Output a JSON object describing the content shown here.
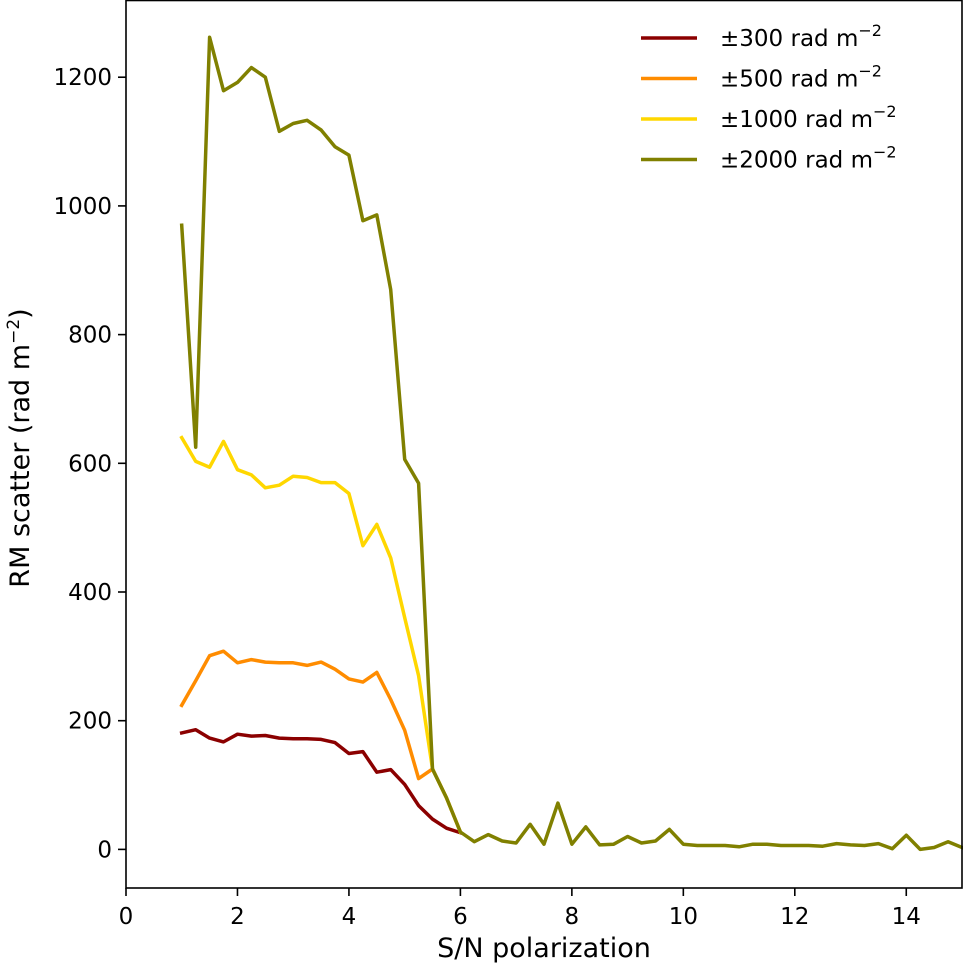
{
  "chart_data": {
    "type": "line",
    "xlabel": "S/N polarization",
    "ylabel": "RM scatter (rad m",
    "ylabel_sup": "−2",
    "ylabel_close": ")",
    "xlim": [
      0,
      15
    ],
    "ylim": [
      -60,
      1320
    ],
    "xticks": [
      0,
      2,
      4,
      6,
      8,
      10,
      12,
      14
    ],
    "yticks": [
      0,
      200,
      400,
      600,
      800,
      1000,
      1200
    ],
    "grid": false,
    "legend_position": "top-right",
    "legend_unit_sup": "−2",
    "series": [
      {
        "name": "±300 rad m",
        "color": "#8b0000",
        "points": [
          [
            1.0,
            181
          ],
          [
            1.25,
            186
          ],
          [
            1.5,
            173
          ],
          [
            1.75,
            167
          ],
          [
            2.0,
            179
          ],
          [
            2.25,
            176
          ],
          [
            2.5,
            177
          ],
          [
            2.75,
            173
          ],
          [
            3.0,
            172
          ],
          [
            3.25,
            172
          ],
          [
            3.5,
            171
          ],
          [
            3.75,
            166
          ],
          [
            4.0,
            149
          ],
          [
            4.25,
            152
          ],
          [
            4.5,
            120
          ],
          [
            4.75,
            124
          ],
          [
            5.0,
            101
          ],
          [
            5.25,
            68
          ],
          [
            5.5,
            47
          ],
          [
            5.75,
            33
          ],
          [
            6.0,
            26
          ]
        ]
      },
      {
        "name": "±500 rad m",
        "color": "#ff8c00",
        "points": [
          [
            1.0,
            224
          ],
          [
            1.25,
            262
          ],
          [
            1.5,
            301
          ],
          [
            1.75,
            308
          ],
          [
            2.0,
            290
          ],
          [
            2.25,
            295
          ],
          [
            2.5,
            291
          ],
          [
            2.75,
            290
          ],
          [
            3.0,
            290
          ],
          [
            3.25,
            286
          ],
          [
            3.5,
            291
          ],
          [
            3.75,
            280
          ],
          [
            4.0,
            265
          ],
          [
            4.25,
            260
          ],
          [
            4.5,
            275
          ],
          [
            4.75,
            233
          ],
          [
            5.0,
            185
          ],
          [
            5.25,
            110
          ],
          [
            5.5,
            125
          ],
          [
            5.75,
            80
          ],
          [
            6.0,
            27
          ]
        ]
      },
      {
        "name": "±1000 rad m",
        "color": "#ffd700",
        "points": [
          [
            1.0,
            640
          ],
          [
            1.25,
            603
          ],
          [
            1.5,
            594
          ],
          [
            1.75,
            634
          ],
          [
            2.0,
            590
          ],
          [
            2.25,
            582
          ],
          [
            2.5,
            562
          ],
          [
            2.75,
            566
          ],
          [
            3.0,
            580
          ],
          [
            3.25,
            578
          ],
          [
            3.5,
            570
          ],
          [
            3.75,
            570
          ],
          [
            4.0,
            553
          ],
          [
            4.25,
            472
          ],
          [
            4.5,
            505
          ],
          [
            4.75,
            453
          ],
          [
            5.0,
            360
          ],
          [
            5.25,
            270
          ],
          [
            5.5,
            125
          ],
          [
            5.75,
            80
          ],
          [
            6.0,
            27
          ]
        ]
      },
      {
        "name": "±2000 rad m",
        "color": "#808000",
        "points": [
          [
            1.0,
            970
          ],
          [
            1.25,
            625
          ],
          [
            1.5,
            1262
          ],
          [
            1.75,
            1179
          ],
          [
            2.0,
            1192
          ],
          [
            2.25,
            1215
          ],
          [
            2.5,
            1200
          ],
          [
            2.75,
            1116
          ],
          [
            3.0,
            1128
          ],
          [
            3.25,
            1133
          ],
          [
            3.5,
            1118
          ],
          [
            3.75,
            1092
          ],
          [
            4.0,
            1079
          ],
          [
            4.25,
            977
          ],
          [
            4.5,
            986
          ],
          [
            4.75,
            870
          ],
          [
            5.0,
            606
          ],
          [
            5.25,
            569
          ],
          [
            5.5,
            125
          ],
          [
            5.75,
            80
          ],
          [
            6.0,
            27
          ],
          [
            6.25,
            12
          ],
          [
            6.5,
            23
          ],
          [
            6.75,
            13
          ],
          [
            7.0,
            10
          ],
          [
            7.25,
            39
          ],
          [
            7.5,
            8
          ],
          [
            7.75,
            72
          ],
          [
            8.0,
            8
          ],
          [
            8.25,
            35
          ],
          [
            8.5,
            7
          ],
          [
            8.75,
            8
          ],
          [
            9.0,
            20
          ],
          [
            9.25,
            10
          ],
          [
            9.5,
            13
          ],
          [
            9.75,
            31
          ],
          [
            10.0,
            8
          ],
          [
            10.25,
            6
          ],
          [
            10.5,
            6
          ],
          [
            10.75,
            6
          ],
          [
            11.0,
            4
          ],
          [
            11.25,
            8
          ],
          [
            11.5,
            8
          ],
          [
            11.75,
            6
          ],
          [
            12.0,
            6
          ],
          [
            12.25,
            6
          ],
          [
            12.5,
            5
          ],
          [
            12.75,
            9
          ],
          [
            13.0,
            7
          ],
          [
            13.25,
            6
          ],
          [
            13.5,
            9
          ],
          [
            13.75,
            1
          ],
          [
            14.0,
            22
          ],
          [
            14.25,
            0
          ],
          [
            14.5,
            3
          ],
          [
            14.75,
            12
          ],
          [
            15.0,
            3
          ]
        ]
      }
    ]
  }
}
